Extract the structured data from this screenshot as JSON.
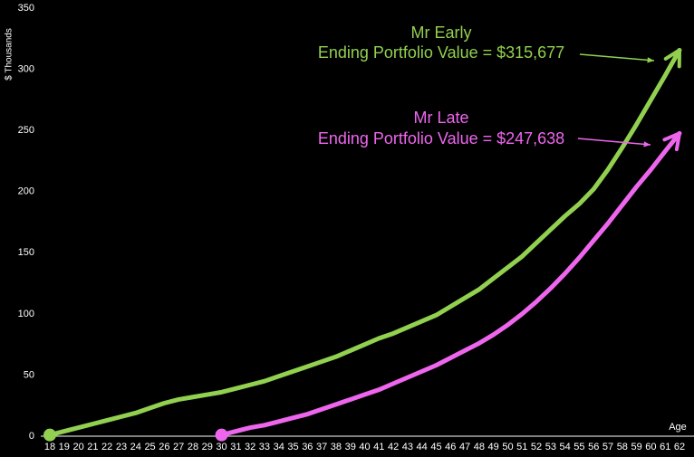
{
  "chart_data": {
    "type": "line",
    "y_label": "$ Thousands",
    "x_label": "Age",
    "categories": [
      18,
      19,
      20,
      21,
      22,
      23,
      24,
      25,
      26,
      27,
      28,
      29,
      30,
      31,
      32,
      33,
      34,
      35,
      36,
      37,
      38,
      39,
      40,
      41,
      42,
      43,
      44,
      45,
      46,
      47,
      48,
      49,
      50,
      51,
      52,
      53,
      54,
      55,
      56,
      57,
      58,
      59,
      60,
      61,
      62
    ],
    "ylim": [
      0,
      350
    ],
    "yticks": [
      0,
      50,
      100,
      150,
      200,
      250,
      300,
      350
    ],
    "grid": false,
    "series": [
      {
        "name": "Mr Early",
        "color": "#92d050",
        "annotation": "Ending Portfolio Value = $315,677",
        "values": [
          1,
          4,
          7,
          10,
          13,
          16,
          19,
          23,
          27,
          30,
          32,
          34,
          36,
          39,
          42,
          45,
          49,
          53,
          57,
          61,
          65,
          70,
          75,
          80,
          84,
          89,
          94,
          99,
          106,
          113,
          120,
          129,
          138,
          147,
          158,
          169,
          180,
          190,
          202,
          218,
          236,
          255,
          275,
          295,
          315.677
        ]
      },
      {
        "name": "Mr Late",
        "color": "#ee66ee",
        "annotation": "Ending Portfolio Value = $247,638",
        "values": [
          null,
          null,
          null,
          null,
          null,
          null,
          null,
          null,
          null,
          null,
          null,
          null,
          1,
          4,
          7,
          9,
          12,
          15,
          18,
          22,
          26,
          30,
          34,
          38,
          43,
          48,
          53,
          58,
          64,
          70,
          76,
          83,
          91,
          100,
          110,
          121,
          133,
          146,
          160,
          174,
          189,
          204,
          218,
          233,
          247.638
        ]
      }
    ]
  }
}
